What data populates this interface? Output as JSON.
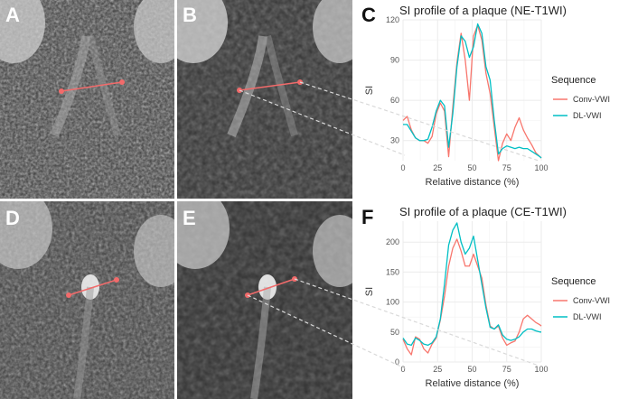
{
  "panels": {
    "A": {
      "letter": "A"
    },
    "B": {
      "letter": "B"
    },
    "C": {
      "letter": "C"
    },
    "D": {
      "letter": "D"
    },
    "E": {
      "letter": "E"
    },
    "F": {
      "letter": "F"
    }
  },
  "colors": {
    "conv": "#f8766d",
    "dl": "#00bfc4",
    "marker": "#f26b6b"
  },
  "chart_data": [
    {
      "type": "line",
      "title": "SI profile of a plaque (NE-T1WI)",
      "xlabel": "Relative distance (%)",
      "ylabel": "SI",
      "xlim": [
        0,
        100
      ],
      "ylim": [
        15,
        120
      ],
      "xticks": [
        0,
        25,
        50,
        75,
        100
      ],
      "yticks": [
        30,
        60,
        90,
        120
      ],
      "grid": true,
      "legend": {
        "title": "Sequence",
        "position": "right"
      },
      "x": [
        0,
        3,
        6,
        9,
        12,
        15,
        18,
        21,
        24,
        27,
        30,
        33,
        36,
        39,
        42,
        45,
        48,
        51,
        54,
        57,
        60,
        63,
        66,
        69,
        72,
        75,
        78,
        81,
        84,
        87,
        90,
        93,
        96,
        99,
        100
      ],
      "series": [
        {
          "name": "Conv-VWI",
          "values": [
            45,
            48,
            38,
            32,
            30,
            30,
            28,
            33,
            50,
            58,
            52,
            18,
            55,
            88,
            110,
            90,
            60,
            108,
            116,
            105,
            80,
            65,
            40,
            15,
            28,
            35,
            30,
            40,
            47,
            38,
            32,
            27,
            21,
            18,
            17
          ]
        },
        {
          "name": "DL-VWI",
          "values": [
            42,
            42,
            37,
            32,
            30,
            30,
            31,
            40,
            52,
            60,
            56,
            25,
            50,
            85,
            108,
            104,
            92,
            100,
            117,
            110,
            85,
            75,
            45,
            20,
            24,
            26,
            25,
            24,
            25,
            24,
            24,
            22,
            20,
            18,
            17
          ]
        }
      ]
    },
    {
      "type": "line",
      "title": "SI profile of a plaque (CE-T1WI)",
      "xlabel": "Relative distance (%)",
      "ylabel": "SI",
      "xlim": [
        0,
        100
      ],
      "ylim": [
        0,
        235
      ],
      "xticks": [
        0,
        25,
        50,
        75,
        100
      ],
      "yticks": [
        0,
        50,
        100,
        150,
        200
      ],
      "grid": true,
      "legend": {
        "title": "Sequence",
        "position": "right"
      },
      "x": [
        0,
        3,
        6,
        9,
        12,
        15,
        18,
        21,
        24,
        27,
        30,
        33,
        36,
        39,
        42,
        45,
        48,
        51,
        54,
        57,
        60,
        63,
        66,
        69,
        72,
        75,
        78,
        81,
        84,
        87,
        90,
        93,
        96,
        99,
        100
      ],
      "series": [
        {
          "name": "Conv-VWI",
          "values": [
            38,
            22,
            12,
            42,
            38,
            22,
            15,
            30,
            40,
            70,
            110,
            160,
            190,
            205,
            185,
            160,
            160,
            180,
            160,
            140,
            95,
            60,
            55,
            60,
            40,
            28,
            32,
            35,
            50,
            72,
            78,
            72,
            66,
            62,
            60
          ]
        },
        {
          "name": "DL-VWI",
          "values": [
            40,
            30,
            28,
            40,
            36,
            30,
            28,
            32,
            42,
            72,
            130,
            195,
            220,
            232,
            200,
            180,
            190,
            210,
            170,
            130,
            90,
            58,
            55,
            62,
            45,
            38,
            36,
            38,
            42,
            50,
            55,
            55,
            52,
            50,
            50
          ]
        }
      ]
    }
  ]
}
